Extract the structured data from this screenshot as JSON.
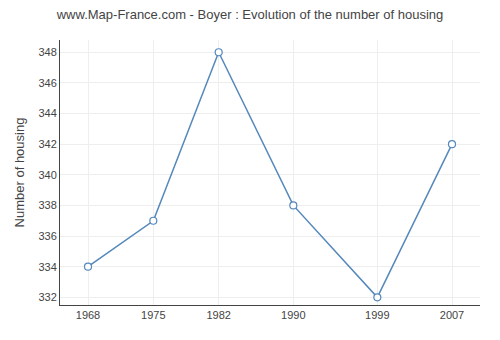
{
  "chart_data": {
    "type": "line",
    "title": "www.Map-France.com - Boyer : Evolution of the number of housing",
    "ylabel": "Number of housing",
    "x": [
      1968,
      1975,
      1982,
      1990,
      1999,
      2007
    ],
    "values": [
      334,
      337,
      348,
      338,
      332,
      342
    ],
    "color": "#5588bb",
    "marker": "circle",
    "xlim": [
      1965,
      2010
    ],
    "xticks": [
      1968,
      1975,
      1982,
      1990,
      1999,
      2007
    ],
    "ylim": [
      331.5,
      348.8
    ],
    "yticks": [
      332,
      334,
      336,
      338,
      340,
      342,
      344,
      346,
      348
    ],
    "grid": true
  }
}
